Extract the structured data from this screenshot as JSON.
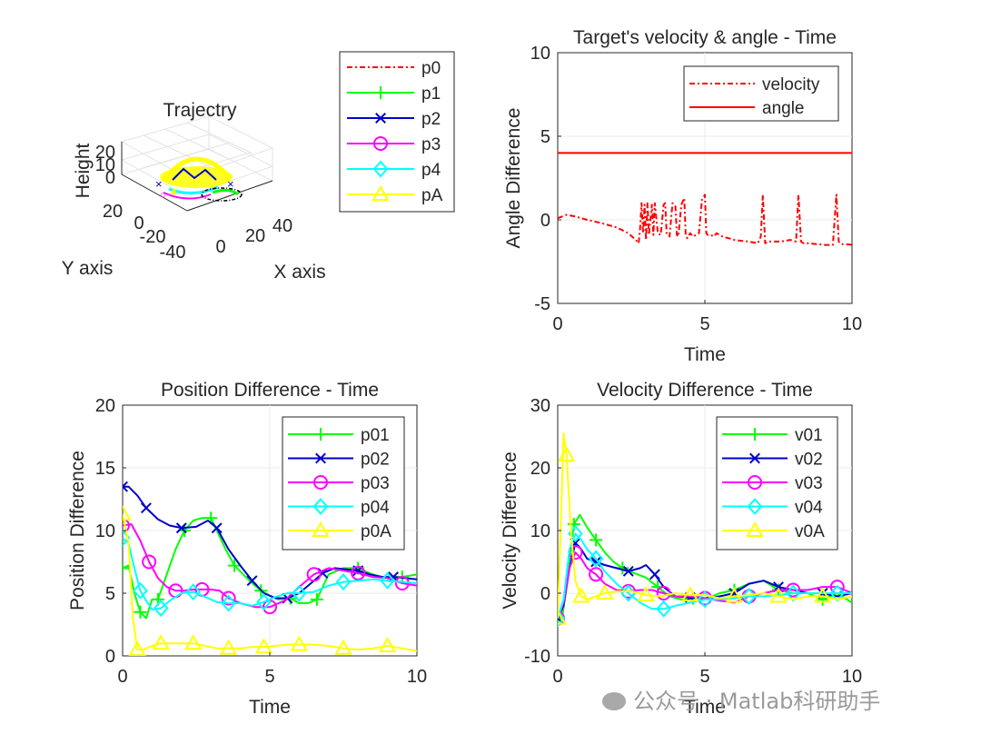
{
  "watermark": "公众号 · Matlab科研助手",
  "chart_data": [
    {
      "id": "trajectory",
      "type": "line3d",
      "title": "Trajectry",
      "xlabel": "X axis",
      "ylabel": "Y axis",
      "zlabel": "Height",
      "xticks": [
        "0",
        "20",
        "40"
      ],
      "yticks": [
        "20",
        "0",
        "-20",
        "-40"
      ],
      "zticks": [
        "0",
        "10",
        "20"
      ],
      "legend": {
        "location": "outside-right",
        "entries": [
          {
            "label": "p0",
            "color": "#ff0000",
            "style": "dashdot",
            "marker": "none"
          },
          {
            "label": "p1",
            "color": "#00ff00",
            "style": "solid",
            "marker": "plus"
          },
          {
            "label": "p2",
            "color": "#0000cc",
            "style": "solid",
            "marker": "x"
          },
          {
            "label": "p3",
            "color": "#ff00ff",
            "style": "solid",
            "marker": "circle"
          },
          {
            "label": "p4",
            "color": "#00ffff",
            "style": "solid",
            "marker": "diamond"
          },
          {
            "label": "pA",
            "color": "#ffff00",
            "style": "solid",
            "marker": "triangle"
          }
        ]
      }
    },
    {
      "id": "target",
      "type": "line",
      "title": "Target's velocity & angle  - Time",
      "xlabel": "Time",
      "ylabel": "Angle Difference",
      "xlim": [
        0,
        10
      ],
      "ylim": [
        -5,
        10
      ],
      "xticks": [
        0,
        5,
        10
      ],
      "yticks": [
        -5,
        0,
        5,
        10
      ],
      "legend": {
        "location": "top-right"
      },
      "series": [
        {
          "name": "velocity",
          "color": "#ff0000",
          "style": "dashdot",
          "x": [
            0,
            0.3,
            0.6,
            1.0,
            1.5,
            2.0,
            2.4,
            2.65,
            2.75,
            2.8,
            2.85,
            2.9,
            2.95,
            3.0,
            3.05,
            3.1,
            3.2,
            3.25,
            3.3,
            3.4,
            3.5,
            3.6,
            3.65,
            3.7,
            3.8,
            3.9,
            4.0,
            4.05,
            4.1,
            4.2,
            4.3,
            4.35,
            4.4,
            4.5,
            4.6,
            4.8,
            4.9,
            5.0,
            5.05,
            5.1,
            5.2,
            5.3,
            5.4,
            5.6,
            5.8,
            6.0,
            6.2,
            6.5,
            6.8,
            6.9,
            6.97,
            7.05,
            7.15,
            7.3,
            7.6,
            7.9,
            8.1,
            8.18,
            8.27,
            8.35,
            8.5,
            8.8,
            9.1,
            9.35,
            9.47,
            9.55,
            9.63,
            9.75,
            10
          ],
          "y": [
            0.1,
            0.3,
            0.2,
            0.0,
            -0.2,
            -0.45,
            -0.8,
            -1.2,
            -1.4,
            -0.5,
            1.0,
            -0.8,
            0.9,
            -1.2,
            1.0,
            -0.9,
            0.9,
            -0.9,
            1.0,
            -0.8,
            -0.9,
            0.9,
            1.0,
            -0.8,
            -1.0,
            1.0,
            0.8,
            -0.9,
            -1.0,
            0.9,
            1.3,
            -0.9,
            -1.1,
            -0.8,
            -1.0,
            -0.8,
            1.2,
            1.5,
            -0.8,
            -0.9,
            -0.9,
            -1.0,
            -0.8,
            -1.0,
            -1.1,
            -1.2,
            -1.25,
            -1.3,
            -1.4,
            -1.0,
            1.5,
            -1.4,
            -1.3,
            -1.3,
            -1.3,
            -1.2,
            -1.3,
            1.5,
            -1.3,
            -1.4,
            -1.4,
            -1.45,
            -1.5,
            -1.5,
            1.5,
            -1.3,
            -1.45,
            -1.45,
            -1.5
          ]
        },
        {
          "name": "angle",
          "color": "#ff0000",
          "style": "solid",
          "x": [
            0,
            10
          ],
          "y": [
            4,
            4
          ]
        }
      ]
    },
    {
      "id": "position",
      "type": "line",
      "title": "Position Difference - Time",
      "xlabel": "Time",
      "ylabel": "Position Difference",
      "xlim": [
        0,
        10
      ],
      "ylim": [
        0,
        20
      ],
      "xticks": [
        0,
        5,
        10
      ],
      "yticks": [
        0,
        5,
        10,
        15,
        20
      ],
      "legend": {
        "location": "top-right"
      },
      "series": [
        {
          "name": "p01",
          "color": "#00ff00",
          "marker": "plus",
          "x": [
            0,
            0.2,
            0.4,
            0.6,
            0.8,
            1.0,
            1.2,
            1.5,
            1.8,
            2.1,
            2.4,
            2.7,
            3.0,
            3.2,
            3.5,
            3.8,
            4.1,
            4.4,
            4.7,
            5.0,
            5.3,
            5.7,
            6.0,
            6.3,
            6.6,
            7.0,
            7.5,
            8.0,
            8.5,
            9.0,
            9.5,
            10
          ],
          "y": [
            7,
            7.2,
            5,
            3.5,
            3,
            4.5,
            4.5,
            6.5,
            8.5,
            10,
            10.8,
            11,
            11,
            10,
            8.5,
            7.2,
            6.5,
            5.8,
            5.2,
            4.8,
            4.5,
            4.6,
            4.2,
            4.2,
            4.5,
            6.5,
            7,
            7,
            6.5,
            6.2,
            6.3,
            6.5
          ]
        },
        {
          "name": "p02",
          "color": "#0000cc",
          "marker": "x",
          "x": [
            0,
            0.2,
            0.5,
            0.8,
            1.2,
            1.6,
            2.0,
            2.5,
            2.9,
            3.2,
            3.6,
            4.0,
            4.4,
            4.8,
            5.2,
            5.6,
            6.0,
            6.4,
            6.8,
            7.2,
            7.6,
            8.0,
            8.4,
            8.8,
            9.2,
            9.6,
            10
          ],
          "y": [
            13.5,
            13.5,
            12.8,
            11.8,
            10.9,
            10.4,
            10.2,
            10.3,
            10.8,
            10.2,
            8.5,
            7.2,
            6.0,
            5.0,
            4.6,
            4.6,
            5.0,
            5.8,
            6.6,
            7.0,
            6.9,
            6.8,
            6.5,
            6.3,
            6.3,
            6.2,
            6.1
          ]
        },
        {
          "name": "p03",
          "color": "#ff00ff",
          "marker": "circle",
          "x": [
            0,
            0.3,
            0.6,
            0.9,
            1.2,
            1.5,
            1.8,
            2.1,
            2.4,
            2.7,
            3.0,
            3.3,
            3.6,
            4.0,
            4.5,
            5.0,
            5.5,
            6.0,
            6.5,
            7.0,
            7.5,
            8.0,
            8.5,
            9.0,
            9.5,
            10
          ],
          "y": [
            10.4,
            10.5,
            9.2,
            7.5,
            6.2,
            5.5,
            5.2,
            5.2,
            5.3,
            5.3,
            5.3,
            5.2,
            4.6,
            4.2,
            3.9,
            3.9,
            4.4,
            5.5,
            6.5,
            7.0,
            6.8,
            6.6,
            6.3,
            6.2,
            5.8,
            5.6
          ]
        },
        {
          "name": "p04",
          "color": "#00ffff",
          "marker": "diamond",
          "x": [
            0,
            0.2,
            0.4,
            0.6,
            0.8,
            1.0,
            1.3,
            1.6,
            2.0,
            2.4,
            2.8,
            3.2,
            3.6,
            4.0,
            4.4,
            4.8,
            5.2,
            5.6,
            6.0,
            6.5,
            7.0,
            7.5,
            8.0,
            8.5,
            9.0,
            9.5,
            10
          ],
          "y": [
            9.4,
            9.0,
            7.0,
            5.2,
            4.4,
            3.7,
            3.8,
            4.4,
            5.0,
            5.1,
            4.7,
            4.3,
            4.2,
            4.2,
            4.0,
            4.3,
            4.7,
            5.0,
            5.0,
            5.1,
            5.6,
            5.9,
            6.0,
            6.1,
            6.0,
            5.9,
            5.8
          ]
        },
        {
          "name": "p0A",
          "color": "#ffff00",
          "marker": "triangle",
          "x": [
            0,
            0.2,
            0.35,
            0.5,
            0.7,
            1.0,
            1.3,
            1.6,
            2.0,
            2.4,
            2.8,
            3.2,
            3.6,
            4.0,
            4.4,
            4.8,
            5.2,
            5.6,
            6.0,
            6.5,
            7.0,
            7.5,
            8.0,
            8.5,
            9.0,
            9.5,
            10
          ],
          "y": [
            11.3,
            9.0,
            3.0,
            0.5,
            0.5,
            0.8,
            1.0,
            1.0,
            1.0,
            1.0,
            0.8,
            0.6,
            0.6,
            0.6,
            0.7,
            0.7,
            0.8,
            0.9,
            0.9,
            0.9,
            0.8,
            0.6,
            0.5,
            0.6,
            0.8,
            0.6,
            0.4
          ]
        }
      ]
    },
    {
      "id": "velocity",
      "type": "line",
      "title": "Velocity Difference - Time",
      "xlabel": "Time",
      "ylabel": "Velocity Difference",
      "xlim": [
        0,
        10
      ],
      "ylim": [
        -10,
        30
      ],
      "xticks": [
        0,
        5,
        10
      ],
      "yticks": [
        -10,
        0,
        10,
        20,
        30
      ],
      "legend": {
        "location": "top-right"
      },
      "series": [
        {
          "name": "v01",
          "color": "#00ff00",
          "marker": "plus",
          "x": [
            0,
            0.15,
            0.35,
            0.55,
            0.75,
            1.0,
            1.3,
            1.6,
            1.9,
            2.2,
            2.6,
            3.0,
            3.4,
            3.8,
            4.2,
            4.6,
            5.0,
            5.5,
            6.0,
            6.5,
            7.0,
            7.5,
            8.0,
            8.5,
            9.0,
            9.5,
            10
          ],
          "y": [
            -4,
            -4,
            3,
            11,
            12.5,
            10.5,
            8.5,
            6.5,
            5,
            4,
            3.2,
            2.5,
            1,
            -0.5,
            -1,
            -0.8,
            -1,
            0,
            0.5,
            1.5,
            2,
            0.5,
            0,
            0,
            -1,
            0,
            -1.5
          ]
        },
        {
          "name": "v02",
          "color": "#0000cc",
          "marker": "x",
          "x": [
            0,
            0.2,
            0.4,
            0.6,
            0.8,
            1.0,
            1.3,
            1.6,
            2.0,
            2.4,
            2.8,
            3.0,
            3.3,
            3.6,
            4.0,
            4.5,
            5.0,
            5.5,
            6.0,
            6.5,
            7.0,
            7.5,
            8.0,
            8.5,
            9.0,
            9.5,
            10
          ],
          "y": [
            -4,
            -2,
            4,
            8,
            7,
            5.5,
            5,
            4.5,
            4,
            3.5,
            4,
            4.5,
            3,
            1,
            -0.5,
            -0.7,
            -0.8,
            -0.5,
            0,
            1.5,
            2,
            1,
            0.5,
            0,
            0,
            -0.5,
            0
          ]
        },
        {
          "name": "v03",
          "color": "#ff00ff",
          "marker": "circle",
          "x": [
            0,
            0.2,
            0.4,
            0.6,
            0.8,
            1.0,
            1.3,
            1.6,
            2.0,
            2.4,
            2.8,
            3.2,
            3.6,
            4.0,
            4.5,
            5.0,
            5.5,
            6.0,
            6.5,
            7.0,
            7.5,
            8.0,
            8.5,
            9.0,
            9.5,
            10
          ],
          "y": [
            -4,
            -1.5,
            4,
            6.5,
            5.5,
            4,
            3,
            1.5,
            0.5,
            0.3,
            0.5,
            0.5,
            0,
            -0.5,
            -0.5,
            -0.8,
            -1.2,
            -1.5,
            -0.5,
            0,
            0.5,
            0.5,
            0.5,
            1,
            1,
            0
          ]
        },
        {
          "name": "v04",
          "color": "#00ffff",
          "marker": "diamond",
          "x": [
            0,
            0.2,
            0.4,
            0.6,
            0.8,
            1.0,
            1.3,
            1.6,
            2.0,
            2.4,
            2.8,
            3.2,
            3.6,
            4.0,
            4.5,
            5.0,
            5.5,
            6.0,
            6.5,
            7.0,
            7.5,
            8.0,
            8.5,
            9.0,
            9.5,
            10
          ],
          "y": [
            -4,
            -1,
            7,
            9.5,
            8.5,
            7,
            5.5,
            3.5,
            1.5,
            0,
            -1.5,
            -2.5,
            -2.5,
            -2,
            -1.5,
            -1,
            -1,
            -0.8,
            -0.5,
            -0.5,
            -0.3,
            0,
            0,
            0,
            0,
            0
          ]
        },
        {
          "name": "v0A",
          "color": "#ffff00",
          "marker": "triangle",
          "x": [
            0,
            0.1,
            0.2,
            0.3,
            0.45,
            0.6,
            0.8,
            1.0,
            1.3,
            1.6,
            2.0,
            2.5,
            3.0,
            3.5,
            4.0,
            4.5,
            5.0,
            5.5,
            6.0,
            6.5,
            7.0,
            7.5,
            8.0,
            8.5,
            9.0,
            9.5,
            10
          ],
          "y": [
            -4,
            10,
            25.5,
            22,
            10,
            2,
            -0.5,
            -1,
            -0.5,
            0,
            0.3,
            0.3,
            -0.3,
            -0.5,
            0,
            -0.3,
            -0.3,
            -0.8,
            -0.5,
            -0.3,
            0,
            -0.5,
            -1,
            -0.5,
            -0.5,
            -1,
            -0.5
          ]
        }
      ]
    }
  ]
}
